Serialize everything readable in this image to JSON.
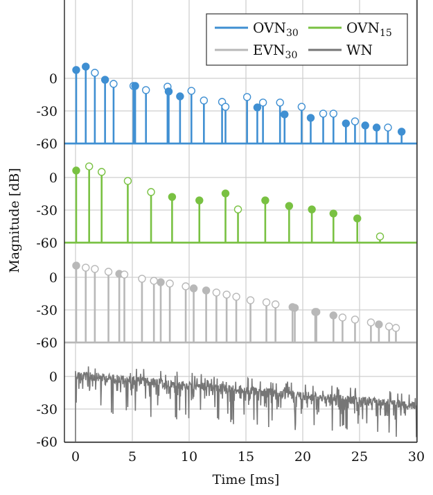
{
  "chart_data": {
    "type": "stem",
    "title": "",
    "xlabel": "Time [ms]",
    "ylabel": "Magnitude [dB]",
    "xlim": [
      -1,
      30
    ],
    "x_ticks": [
      0,
      5,
      10,
      15,
      20,
      25,
      30
    ],
    "x_tick_labels": [
      "0",
      "5",
      "10",
      "15",
      "20",
      "25",
      "30"
    ],
    "grid": true,
    "legend": {
      "placement": "top-right",
      "columns": 2,
      "entries": [
        {
          "base": "OVN",
          "sub": "30",
          "series": "OVN30"
        },
        {
          "base": "OVN",
          "sub": "15",
          "series": "OVN15"
        },
        {
          "base": "EVN",
          "sub": "30",
          "series": "EVN30"
        },
        {
          "base": "WN",
          "sub": "",
          "series": "WN"
        }
      ]
    },
    "panels": [
      {
        "name": "OVN30",
        "color": "#3f8fd2",
        "type": "stem",
        "ylim": [
          -60,
          20
        ],
        "y_ticks": [
          0,
          -30,
          -60
        ],
        "y_tick_labels": [
          "0",
          "-30",
          "-60"
        ],
        "points": [
          {
            "t": 0.06,
            "db": 7.7,
            "filled": true
          },
          {
            "t": 0.9,
            "db": 10.8,
            "filled": true
          },
          {
            "t": 1.7,
            "db": 5.1,
            "filled": false
          },
          {
            "t": 2.6,
            "db": -1.3,
            "filled": true
          },
          {
            "t": 3.35,
            "db": -5.1,
            "filled": false
          },
          {
            "t": 5.1,
            "db": -7.0,
            "filled": false
          },
          {
            "t": 5.25,
            "db": -7.0,
            "filled": true
          },
          {
            "t": 6.2,
            "db": -10.8,
            "filled": false
          },
          {
            "t": 8.1,
            "db": -7.7,
            "filled": false
          },
          {
            "t": 8.2,
            "db": -12.1,
            "filled": true
          },
          {
            "t": 9.2,
            "db": -16.6,
            "filled": true
          },
          {
            "t": 10.2,
            "db": -11.5,
            "filled": false
          },
          {
            "t": 11.3,
            "db": -20.4,
            "filled": false
          },
          {
            "t": 12.9,
            "db": -21.7,
            "filled": false
          },
          {
            "t": 13.2,
            "db": -26.2,
            "filled": false
          },
          {
            "t": 15.1,
            "db": -17.2,
            "filled": false
          },
          {
            "t": 16.0,
            "db": -26.8,
            "filled": true
          },
          {
            "t": 16.5,
            "db": -22.3,
            "filled": false
          },
          {
            "t": 18.0,
            "db": -22.3,
            "filled": false
          },
          {
            "t": 18.4,
            "db": -33.2,
            "filled": true
          },
          {
            "t": 19.9,
            "db": -26.2,
            "filled": false
          },
          {
            "t": 20.7,
            "db": -36.4,
            "filled": true
          },
          {
            "t": 21.8,
            "db": -32.5,
            "filled": false
          },
          {
            "t": 22.7,
            "db": -32.5,
            "filled": false
          },
          {
            "t": 23.8,
            "db": -41.5,
            "filled": true
          },
          {
            "t": 24.6,
            "db": -39.6,
            "filled": false
          },
          {
            "t": 25.5,
            "db": -43.4,
            "filled": true
          },
          {
            "t": 26.5,
            "db": -45.3,
            "filled": true
          },
          {
            "t": 27.5,
            "db": -45.3,
            "filled": false
          },
          {
            "t": 28.7,
            "db": -49.1,
            "filled": true
          }
        ]
      },
      {
        "name": "OVN15",
        "color": "#79c142",
        "type": "stem",
        "ylim": [
          -60,
          20
        ],
        "y_ticks": [
          0,
          -30,
          -60
        ],
        "y_tick_labels": [
          "0",
          "-30",
          "-60"
        ],
        "points": [
          {
            "t": 0.06,
            "db": 6.4,
            "filled": true
          },
          {
            "t": 1.2,
            "db": 10.2,
            "filled": false
          },
          {
            "t": 2.3,
            "db": 5.1,
            "filled": false
          },
          {
            "t": 4.6,
            "db": -3.2,
            "filled": false
          },
          {
            "t": 6.65,
            "db": -13.4,
            "filled": false
          },
          {
            "t": 8.5,
            "db": -17.9,
            "filled": true
          },
          {
            "t": 10.9,
            "db": -21.1,
            "filled": true
          },
          {
            "t": 13.2,
            "db": -14.7,
            "filled": true
          },
          {
            "t": 14.3,
            "db": -29.4,
            "filled": false
          },
          {
            "t": 16.7,
            "db": -21.1,
            "filled": true
          },
          {
            "t": 18.8,
            "db": -26.2,
            "filled": true
          },
          {
            "t": 20.8,
            "db": -29.4,
            "filled": true
          },
          {
            "t": 22.7,
            "db": -33.2,
            "filled": true
          },
          {
            "t": 24.8,
            "db": -37.7,
            "filled": true
          },
          {
            "t": 26.8,
            "db": -54.3,
            "filled": false
          }
        ]
      },
      {
        "name": "EVN30",
        "color": "#b8b8b8",
        "type": "stem",
        "ylim": [
          -60,
          20
        ],
        "y_ticks": [
          0,
          -30,
          -60
        ],
        "y_tick_labels": [
          "0",
          "-30",
          "-60"
        ],
        "points": [
          {
            "t": 0.06,
            "db": 10.8,
            "filled": true
          },
          {
            "t": 0.9,
            "db": 8.9,
            "filled": false
          },
          {
            "t": 1.7,
            "db": 7.7,
            "filled": false
          },
          {
            "t": 2.9,
            "db": 5.1,
            "filled": false
          },
          {
            "t": 3.85,
            "db": 3.2,
            "filled": true
          },
          {
            "t": 4.3,
            "db": 2.6,
            "filled": false
          },
          {
            "t": 5.85,
            "db": -1.3,
            "filled": false
          },
          {
            "t": 6.9,
            "db": -3.2,
            "filled": false
          },
          {
            "t": 7.5,
            "db": -4.5,
            "filled": true
          },
          {
            "t": 8.3,
            "db": -5.7,
            "filled": false
          },
          {
            "t": 9.7,
            "db": -8.3,
            "filled": false
          },
          {
            "t": 10.4,
            "db": -10.2,
            "filled": true
          },
          {
            "t": 11.5,
            "db": -12.1,
            "filled": true
          },
          {
            "t": 12.4,
            "db": -14.0,
            "filled": false
          },
          {
            "t": 13.3,
            "db": -15.9,
            "filled": false
          },
          {
            "t": 14.15,
            "db": -17.9,
            "filled": false
          },
          {
            "t": 15.4,
            "db": -21.1,
            "filled": false
          },
          {
            "t": 16.8,
            "db": -23.0,
            "filled": false
          },
          {
            "t": 17.6,
            "db": -24.9,
            "filled": false
          },
          {
            "t": 19.1,
            "db": -27.4,
            "filled": true
          },
          {
            "t": 19.3,
            "db": -28.1,
            "filled": true
          },
          {
            "t": 21.1,
            "db": -31.9,
            "filled": true
          },
          {
            "t": 21.2,
            "db": -31.9,
            "filled": true
          },
          {
            "t": 22.7,
            "db": -35.1,
            "filled": true
          },
          {
            "t": 23.5,
            "db": -37.0,
            "filled": false
          },
          {
            "t": 24.6,
            "db": -38.9,
            "filled": false
          },
          {
            "t": 26.0,
            "db": -41.5,
            "filled": false
          },
          {
            "t": 26.7,
            "db": -43.4,
            "filled": true
          },
          {
            "t": 27.6,
            "db": -45.3,
            "filled": false
          },
          {
            "t": 28.2,
            "db": -46.6,
            "filled": false
          }
        ]
      },
      {
        "name": "WN",
        "color": "#767676",
        "type": "line",
        "ylim": [
          -60,
          20
        ],
        "y_ticks": [
          0,
          -30,
          -60
        ],
        "y_tick_labels": [
          "0",
          "-30",
          "-60"
        ],
        "description": "White-noise impulse response magnitude, dense trace from 0 to 30 ms",
        "envelope": {
          "start_db": 5,
          "end_db": -23,
          "t_start": 0,
          "t_end": 30
        },
        "noise_floor_dips_db": -45
      }
    ]
  }
}
